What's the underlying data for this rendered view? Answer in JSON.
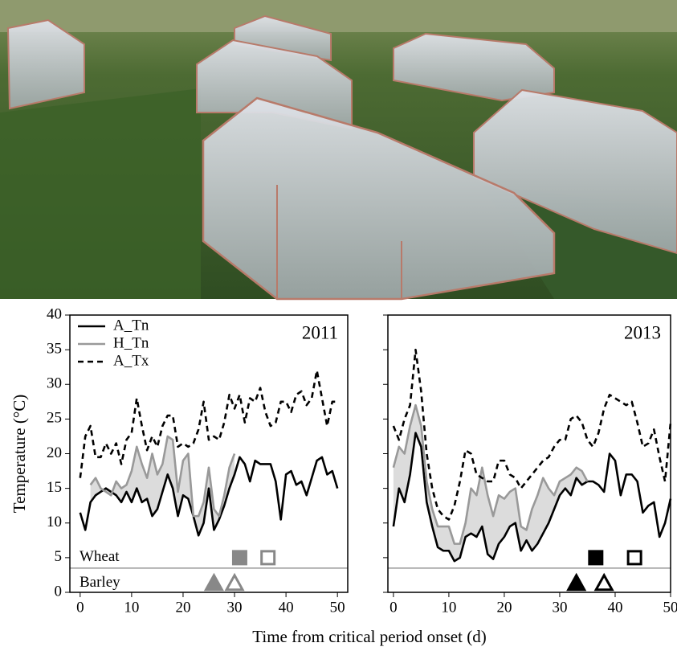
{
  "chart_data": [
    {
      "type": "line",
      "title": "2011",
      "xlabel": "Time from critical period onset (d)",
      "ylabel": "Temperature (°C)",
      "x": [
        0,
        1,
        2,
        3,
        4,
        5,
        6,
        7,
        8,
        9,
        10,
        11,
        12,
        13,
        14,
        15,
        16,
        17,
        18,
        19,
        20,
        21,
        22,
        23,
        24,
        25,
        26,
        27,
        28,
        29,
        30,
        31,
        32,
        33,
        34,
        35,
        36,
        37,
        38,
        39,
        40,
        41,
        42,
        43,
        44,
        45,
        46,
        47,
        48,
        49,
        50
      ],
      "series": [
        {
          "name": "A_Tn",
          "color": "#000000",
          "dash": false,
          "values": [
            11.5,
            9,
            13,
            14,
            14.5,
            15,
            14.5,
            14,
            13,
            14.5,
            13,
            15,
            13,
            13.5,
            11,
            12,
            14.5,
            17,
            15,
            11,
            14,
            13.5,
            11,
            8.2,
            10,
            15,
            9,
            10.5,
            12.5,
            15,
            17,
            19.5,
            18.5,
            16,
            19,
            18.5,
            18.5,
            18.5,
            16,
            10.5,
            17,
            17.5,
            15.5,
            16,
            14,
            16.5,
            19,
            19.5,
            17,
            17.5,
            15
          ]
        },
        {
          "name": "H_Tn",
          "color": "#999999",
          "dash": false,
          "values": [
            null,
            null,
            15.5,
            16.5,
            15,
            14.5,
            14,
            16,
            15,
            15.5,
            17.5,
            21,
            18.5,
            16.5,
            20,
            17,
            18.5,
            22.5,
            22,
            14.5,
            19,
            20,
            11,
            11,
            13,
            18,
            12,
            11,
            14,
            18,
            20,
            null,
            null,
            null,
            null,
            null,
            null,
            null,
            null,
            null,
            null,
            null,
            null,
            null,
            null,
            null,
            null,
            null,
            null,
            null,
            null
          ]
        },
        {
          "name": "A_Tx",
          "color": "#000000",
          "dash": true,
          "values": [
            16.5,
            22.5,
            24,
            19.5,
            19.5,
            21.5,
            20,
            21.5,
            18.5,
            22,
            23,
            28,
            24,
            20.5,
            22.5,
            21,
            24,
            25.5,
            25.5,
            21,
            21.5,
            21,
            21.5,
            23.5,
            27.5,
            22,
            22.5,
            22,
            24.5,
            28.5,
            26.5,
            28.5,
            24.5,
            28,
            27.5,
            29.5,
            26,
            24,
            24.5,
            27.5,
            27.5,
            26,
            28.5,
            29,
            27,
            28,
            32,
            28,
            24,
            27.5,
            27.5
          ]
        }
      ],
      "xlim": [
        -2,
        52
      ],
      "ylim": [
        0,
        40
      ],
      "xticks": [
        0,
        10,
        20,
        30,
        40,
        50
      ],
      "yticks": [
        0,
        5,
        10,
        15,
        20,
        25,
        30,
        35,
        40
      ],
      "legend": "upper left",
      "divider_y": 3.5,
      "marker_color": "#888888",
      "crops": [
        {
          "name": "Wheat",
          "y": 5,
          "shape": "square",
          "filled_x": 31,
          "open_x": 36.5
        },
        {
          "name": "Barley",
          "y": 1.3,
          "shape": "triangle",
          "filled_x": 26,
          "open_x": 30
        }
      ]
    },
    {
      "type": "line",
      "title": "2013",
      "x": [
        0,
        1,
        2,
        3,
        4,
        5,
        6,
        7,
        8,
        9,
        10,
        11,
        12,
        13,
        14,
        15,
        16,
        17,
        18,
        19,
        20,
        21,
        22,
        23,
        24,
        25,
        26,
        27,
        28,
        29,
        30,
        31,
        32,
        33,
        34,
        35,
        36,
        37,
        38,
        39,
        40,
        41,
        42,
        43,
        44,
        45,
        46,
        47,
        48,
        49,
        50
      ],
      "series": [
        {
          "color": "#000000",
          "dash": false,
          "values": [
            9.5,
            15,
            13,
            17,
            23,
            21,
            13,
            9.5,
            6.5,
            6,
            6,
            4.5,
            5,
            8,
            8.5,
            8,
            9.5,
            5.5,
            4.8,
            7,
            8,
            9.5,
            10,
            6,
            7.5,
            6,
            7,
            8.5,
            10,
            12,
            14,
            15,
            14,
            16.5,
            15.5,
            16,
            16,
            15.5,
            14.5,
            20,
            19,
            14,
            17,
            17,
            16,
            11.5,
            12.5,
            13,
            8,
            10,
            13.5
          ]
        },
        {
          "color": "#999999",
          "dash": false,
          "values": [
            18,
            21,
            20,
            24,
            27,
            24,
            16,
            12,
            9.5,
            9.5,
            9.5,
            7,
            7,
            10,
            15,
            14,
            18,
            14,
            11,
            14,
            13.5,
            14.5,
            15,
            9.5,
            9,
            12,
            14,
            16.5,
            15,
            14,
            16,
            16.5,
            17,
            18,
            17.5,
            16,
            null,
            null,
            null,
            null,
            null,
            null,
            null,
            null,
            null,
            null,
            null,
            null,
            null,
            null,
            null
          ]
        },
        {
          "color": "#000000",
          "dash": true,
          "values": [
            24,
            22,
            25,
            27,
            35,
            29,
            20,
            15,
            12,
            11,
            10.5,
            12.5,
            16,
            20.5,
            20,
            17,
            16.5,
            16,
            16,
            19,
            19,
            17,
            16.5,
            15,
            16,
            17,
            18,
            19,
            19.5,
            21,
            22,
            22,
            25,
            25.5,
            24.5,
            22,
            21,
            23,
            26.5,
            28.5,
            28,
            27.5,
            27,
            27.5,
            24.5,
            21,
            21.5,
            23.5,
            19.5,
            16,
            24.5
          ]
        }
      ],
      "xlim": [
        -1,
        50
      ],
      "ylim": [
        0,
        40
      ],
      "xticks": [
        0,
        10,
        20,
        30,
        40,
        50
      ],
      "yticks": [
        0,
        5,
        10,
        15,
        20,
        25,
        30,
        35,
        40
      ],
      "divider_y": 3.5,
      "marker_color": "#000000",
      "crops": [
        {
          "y": 5,
          "shape": "square",
          "filled_x": 36.5,
          "open_x": 43.5
        },
        {
          "y": 1.3,
          "shape": "triangle",
          "filled_x": 33,
          "open_x": 38
        }
      ]
    }
  ]
}
